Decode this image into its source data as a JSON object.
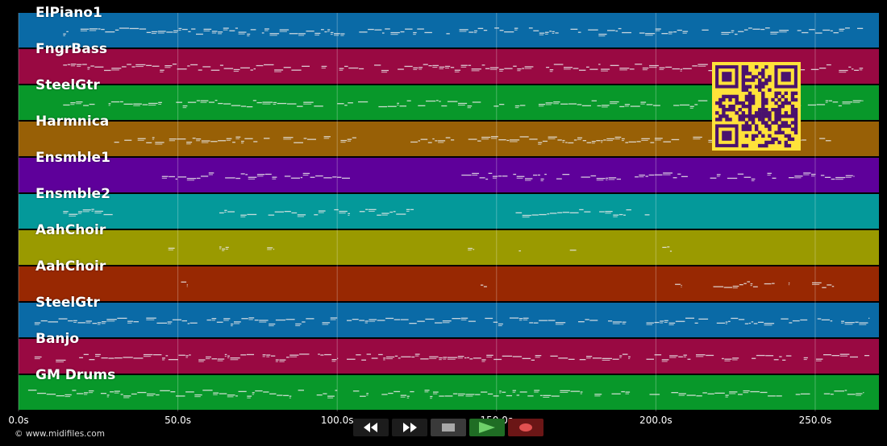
{
  "app": {
    "copyright": "© www.midifiles.com"
  },
  "colors": {
    "background": "#000000",
    "note": "#e8e8e8",
    "grid": "rgba(255,255,255,0.28)",
    "qr_bg": "#ffe23a",
    "qr_fg": "#4a126e"
  },
  "tracks": [
    {
      "name": "ElPiano1",
      "color": "#0a6aa6"
    },
    {
      "name": "FngrBass",
      "color": "#990942"
    },
    {
      "name": "SteelGtr",
      "color": "#08982a"
    },
    {
      "name": "Harmnica",
      "color": "#986006"
    },
    {
      "name": "Ensmble1",
      "color": "#5e009a"
    },
    {
      "name": "Ensmble2",
      "color": "#04999a"
    },
    {
      "name": "AahChoir",
      "color": "#9a9a00"
    },
    {
      "name": "AahChoir",
      "color": "#982802"
    },
    {
      "name": "SteelGtr",
      "color": "#0a6aa6"
    },
    {
      "name": "Banjo",
      "color": "#990942"
    },
    {
      "name": "GM Drums",
      "color": "#08982a"
    }
  ],
  "timeline": {
    "end_seconds": 270,
    "ticks": [
      {
        "t": 0,
        "label": "0.0s"
      },
      {
        "t": 50,
        "label": "50.0s"
      },
      {
        "t": 100,
        "label": "100.0s"
      },
      {
        "t": 150,
        "label": "150.0s"
      },
      {
        "t": 200,
        "label": "200.0s"
      },
      {
        "t": 250,
        "label": "250.0s"
      }
    ]
  },
  "transport": [
    {
      "name": "rewind",
      "icon": "rewind-icon",
      "bg": "#1c1c1c",
      "fg": "#ffffff"
    },
    {
      "name": "fast-forward",
      "icon": "fast-forward-icon",
      "bg": "#1c1c1c",
      "fg": "#ffffff"
    },
    {
      "name": "stop",
      "icon": "stop-icon",
      "bg": "#3a3a3a",
      "fg": "#a8a8a8"
    },
    {
      "name": "play",
      "icon": "play-icon",
      "bg": "#1f6d24",
      "fg": "#6fd06a"
    },
    {
      "name": "record",
      "icon": "record-icon",
      "bg": "#6b1616",
      "fg": "#e05050"
    }
  ]
}
